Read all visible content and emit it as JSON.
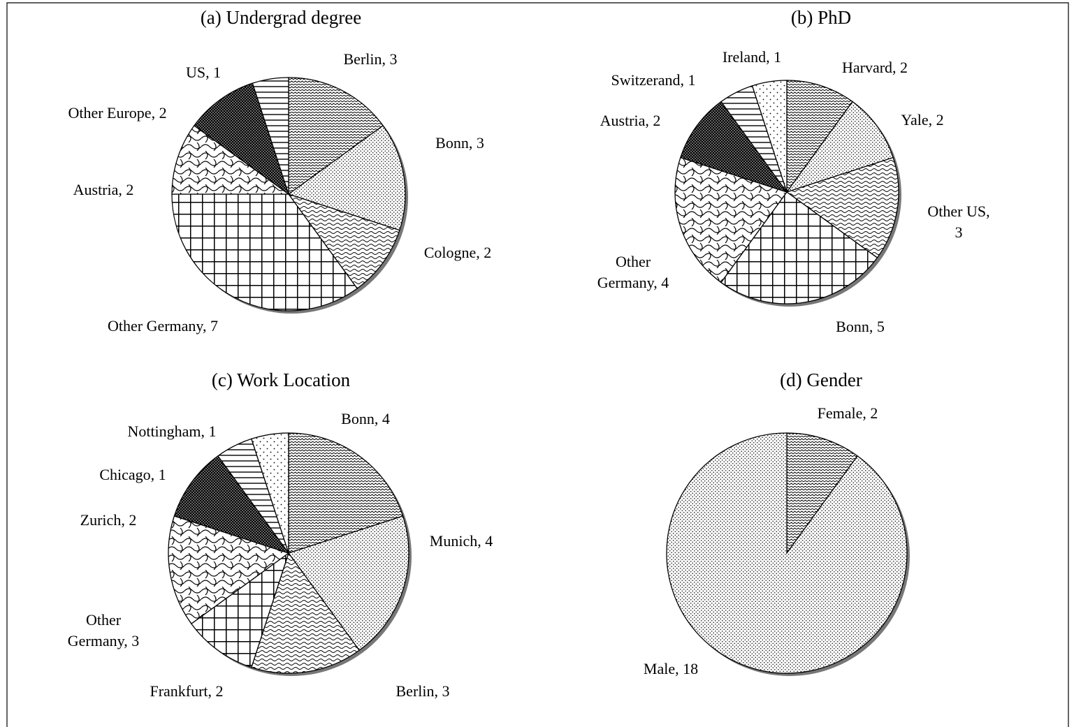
{
  "chart_data": [
    {
      "type": "pie",
      "title": "(a) Undergrad degree",
      "categories": [
        "Berlin",
        "Bonn",
        "Cologne",
        "Other Germany",
        "Austria",
        "Other Europe",
        "US"
      ],
      "values": [
        3,
        3,
        2,
        7,
        2,
        2,
        1
      ]
    },
    {
      "type": "pie",
      "title": "(b) PhD",
      "categories": [
        "Harvard",
        "Yale",
        "Other US",
        "Bonn",
        "Other Germany",
        "Austria",
        "Switzerand",
        "Ireland"
      ],
      "values": [
        2,
        2,
        3,
        5,
        4,
        2,
        1,
        1
      ]
    },
    {
      "type": "pie",
      "title": "(c) Work Location",
      "categories": [
        "Bonn",
        "Munich",
        "Berlin",
        "Frankfurt",
        "Other Germany",
        "Zurich",
        "Chicago",
        "Nottingham"
      ],
      "values": [
        4,
        4,
        3,
        2,
        3,
        2,
        1,
        1
      ]
    },
    {
      "type": "pie",
      "title": "(d)  Gender",
      "categories": [
        "Female",
        "Male"
      ],
      "values": [
        2,
        18
      ]
    }
  ]
}
